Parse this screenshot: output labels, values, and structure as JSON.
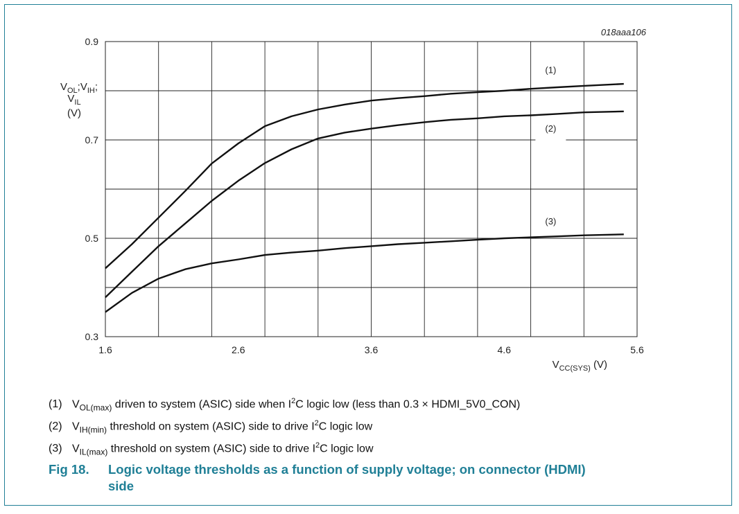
{
  "chart_data": {
    "type": "line",
    "code": "018aaa106",
    "x": [
      1.6,
      1.8,
      2.0,
      2.2,
      2.4,
      2.6,
      2.8,
      3.0,
      3.2,
      3.4,
      3.6,
      3.8,
      4.0,
      4.2,
      4.4,
      4.6,
      4.8,
      5.0,
      5.2,
      5.5
    ],
    "series": [
      {
        "name": "(1)",
        "values": [
          0.439,
          0.488,
          0.542,
          0.596,
          0.652,
          0.693,
          0.728,
          0.748,
          0.762,
          0.772,
          0.78,
          0.785,
          0.789,
          0.794,
          0.797,
          0.8,
          0.804,
          0.807,
          0.81,
          0.814
        ]
      },
      {
        "name": "(2)",
        "values": [
          0.38,
          0.432,
          0.484,
          0.53,
          0.576,
          0.617,
          0.653,
          0.681,
          0.703,
          0.715,
          0.723,
          0.73,
          0.736,
          0.741,
          0.744,
          0.748,
          0.75,
          0.753,
          0.756,
          0.758
        ]
      },
      {
        "name": "(3)",
        "values": [
          0.35,
          0.389,
          0.418,
          0.437,
          0.449,
          0.457,
          0.466,
          0.471,
          0.475,
          0.48,
          0.484,
          0.488,
          0.491,
          0.494,
          0.497,
          0.5,
          0.502,
          0.504,
          0.506,
          0.508
        ]
      }
    ],
    "xlim": [
      1.6,
      5.6
    ],
    "ylim": [
      0.3,
      0.9
    ],
    "xticks": [
      "1.6",
      "2.6",
      "3.6",
      "4.6",
      "5.6"
    ],
    "yticks": [
      "0.3",
      "0.5",
      "0.7",
      "0.9"
    ],
    "ylabel_parts": [
      "V",
      "OL",
      ";V",
      "IH",
      ";",
      "V",
      "IL",
      "(V)"
    ],
    "xlabel_parts": [
      "V",
      "CC(SYS)",
      " (V)"
    ],
    "grid": true
  },
  "notes": [
    {
      "num": "(1)",
      "sym": "V",
      "sub": "OL(max)",
      "text1": " driven to system (ASIC) side when I",
      "sup": "2",
      "text2": "C logic low (less than 0.3 × HDMI_5V0_CON)"
    },
    {
      "num": "(2)",
      "sym": "V",
      "sub": "IH(min)",
      "text1": " threshold on system (ASIC) side to drive I",
      "sup": "2",
      "text2": "C logic low"
    },
    {
      "num": "(3)",
      "sym": "V",
      "sub": "IL(max)",
      "text1": " threshold on system (ASIC) side to drive I",
      "sup": "2",
      "text2": "C logic low"
    }
  ],
  "caption": {
    "fig": "Fig 18.",
    "line1": "Logic voltage thresholds as a function of supply voltage; on connector (HDMI)",
    "line2": "side"
  },
  "colors": {
    "accent": "#1f7f96",
    "line": "#111111",
    "grid": "#222222"
  }
}
